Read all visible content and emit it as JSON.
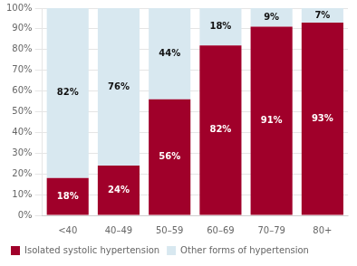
{
  "chart_data": {
    "type": "bar",
    "categories": [
      "<40",
      "40–49",
      "50–59",
      "60–69",
      "70–79",
      "80+"
    ],
    "series": [
      {
        "name": "Isolated systolic hypertension",
        "color": "#A0002A",
        "values": [
          18,
          24,
          56,
          82,
          91,
          93
        ],
        "value_labels": [
          "18%",
          "24%",
          "56%",
          "82%",
          "91%",
          "93%"
        ]
      },
      {
        "name": "Other forms of hypertension",
        "color": "#D8E8F0",
        "values": [
          82,
          76,
          44,
          18,
          9,
          7
        ],
        "value_labels": [
          "82%",
          "76%",
          "44%",
          "18%",
          "9%",
          "7%"
        ]
      }
    ],
    "stacked": true,
    "ylim": [
      0,
      100
    ],
    "yticks": [
      {
        "value": 0,
        "label": "0%"
      },
      {
        "value": 10,
        "label": "10%"
      },
      {
        "value": 20,
        "label": "20%"
      },
      {
        "value": 30,
        "label": "30%"
      },
      {
        "value": 40,
        "label": "40%"
      },
      {
        "value": 50,
        "label": "50%"
      },
      {
        "value": 60,
        "label": "60%"
      },
      {
        "value": 70,
        "label": "70%"
      },
      {
        "value": 80,
        "label": "80%"
      },
      {
        "value": 90,
        "label": "90%"
      },
      {
        "value": 100,
        "label": "100%"
      }
    ],
    "grid": true,
    "legend": "bottom",
    "data_labels": true
  }
}
